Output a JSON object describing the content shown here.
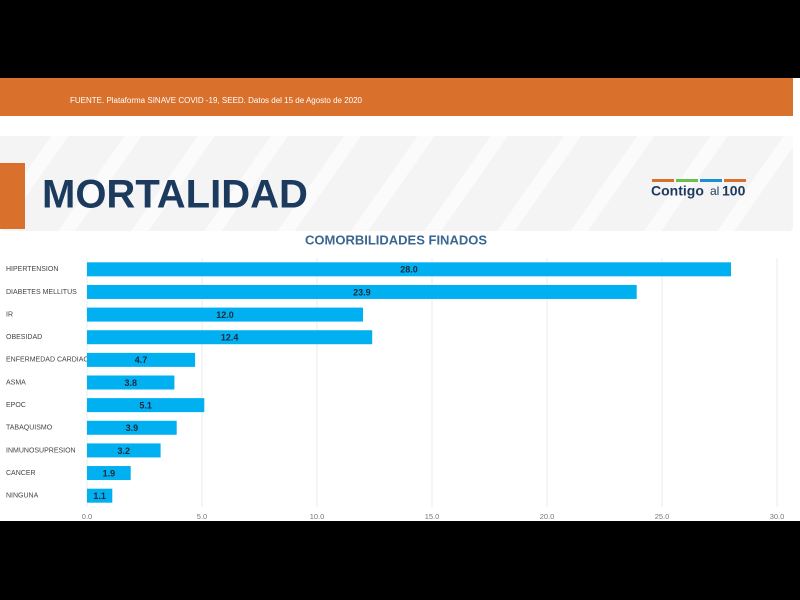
{
  "header": {
    "source": "FUENTE. Plataforma SINAVE COVID -19, SEED. Datos del 15 de Agosto de 2020",
    "heading": "MORTALIDAD",
    "logo": [
      "Contigo",
      "al",
      "100"
    ]
  },
  "chart_data": {
    "type": "hbar",
    "title": "COMORBILIDADES FINADOS",
    "categories": [
      "HIPERTENSION",
      "DIABETES MELLITUS",
      "IR",
      "OBESIDAD",
      "ENFERMEDAD CARDIACA",
      "ASMA",
      "EPOC",
      "TABAQUISMO",
      "INMUNOSUPRESION",
      "CANCER",
      "NINGUNA"
    ],
    "values": [
      28.0,
      23.9,
      12.0,
      12.4,
      4.7,
      3.8,
      5.1,
      3.9,
      3.2,
      1.9,
      1.1
    ],
    "value_labels": [
      "28.0",
      "23.9",
      "12.0",
      "12.4",
      "4.7",
      "3.8",
      "5.1",
      "3.9",
      "3.2",
      "1.9",
      "1.1"
    ],
    "color": "#00b0f0",
    "xlim": [
      0,
      30
    ],
    "xticks": [
      {
        "value": 0,
        "label": "0.0"
      },
      {
        "value": 5,
        "label": "5.0"
      },
      {
        "value": 10,
        "label": "10.0"
      },
      {
        "value": 15,
        "label": "15.0"
      },
      {
        "value": 20,
        "label": "20.0"
      },
      {
        "value": 25,
        "label": "25.0"
      },
      {
        "value": 30,
        "label": "30.0"
      }
    ],
    "grid": true
  }
}
